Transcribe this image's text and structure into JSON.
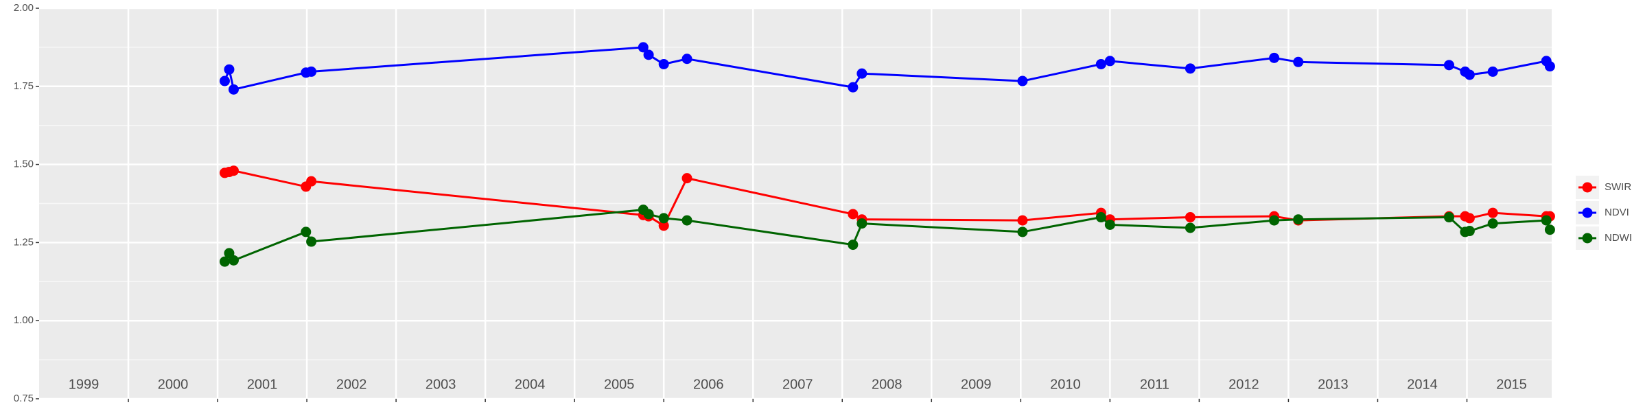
{
  "chart_data": {
    "type": "line",
    "x": [
      2001.08,
      2001.13,
      2001.18,
      2001.99,
      2002.05,
      2005.77,
      2005.83,
      2006.0,
      2006.26,
      2008.12,
      2008.22,
      2010.02,
      2010.9,
      2011.0,
      2011.9,
      2012.84,
      2013.11,
      2014.8,
      2014.98,
      2015.03,
      2015.29,
      2015.89,
      2015.93
    ],
    "series": [
      {
        "name": "SWIR",
        "color": "#ff0000",
        "values": [
          1.473,
          1.476,
          1.48,
          1.429,
          1.446,
          1.338,
          1.334,
          1.304,
          1.456,
          1.341,
          1.324,
          1.321,
          1.345,
          1.324,
          1.331,
          1.334,
          1.321,
          1.334,
          1.334,
          1.328,
          1.345,
          1.334,
          1.334
        ]
      },
      {
        "name": "NDVI",
        "color": "#0000ff",
        "values": [
          1.767,
          1.804,
          1.74,
          1.794,
          1.797,
          1.875,
          1.851,
          1.821,
          1.838,
          1.747,
          1.791,
          1.767,
          1.821,
          1.831,
          1.807,
          1.841,
          1.828,
          1.818,
          1.797,
          1.787,
          1.797,
          1.831,
          1.814
        ]
      },
      {
        "name": "NDWI",
        "color": "#006400",
        "values": [
          1.189,
          1.216,
          1.193,
          1.284,
          1.253,
          1.355,
          1.341,
          1.328,
          1.321,
          1.243,
          1.311,
          1.284,
          1.331,
          1.307,
          1.297,
          1.321,
          1.324,
          1.331,
          1.284,
          1.287,
          1.311,
          1.321,
          1.291
        ]
      }
    ],
    "xlim": [
      1999,
      2015.95
    ],
    "xticks": [
      2000,
      2001,
      2002,
      2003,
      2004,
      2005,
      2006,
      2007,
      2008,
      2009,
      2010,
      2011,
      2012,
      2013,
      2014,
      2015
    ],
    "year_labels": [
      {
        "x": 1999.5,
        "label": "1999"
      },
      {
        "x": 2000.5,
        "label": "2000"
      },
      {
        "x": 2001.5,
        "label": "2001"
      },
      {
        "x": 2002.5,
        "label": "2002"
      },
      {
        "x": 2003.5,
        "label": "2003"
      },
      {
        "x": 2004.5,
        "label": "2004"
      },
      {
        "x": 2005.5,
        "label": "2005"
      },
      {
        "x": 2006.5,
        "label": "2006"
      },
      {
        "x": 2007.5,
        "label": "2007"
      },
      {
        "x": 2008.5,
        "label": "2008"
      },
      {
        "x": 2009.5,
        "label": "2009"
      },
      {
        "x": 2010.5,
        "label": "2010"
      },
      {
        "x": 2011.5,
        "label": "2011"
      },
      {
        "x": 2012.5,
        "label": "2012"
      },
      {
        "x": 2013.5,
        "label": "2013"
      },
      {
        "x": 2014.5,
        "label": "2014"
      },
      {
        "x": 2015.5,
        "label": "2015"
      }
    ],
    "ylim": [
      0.75,
      2.0
    ],
    "yticks": [
      {
        "value": 0.75,
        "label": "0.75"
      },
      {
        "value": 1.0,
        "label": "1.00"
      },
      {
        "value": 1.25,
        "label": "1.25"
      },
      {
        "value": 1.5,
        "label": "1.50"
      },
      {
        "value": 1.75,
        "label": "1.75"
      },
      {
        "value": 2.0,
        "label": "2.00"
      }
    ],
    "yminor": [
      0.875,
      1.125,
      1.375,
      1.625,
      1.875
    ],
    "grid": true,
    "legend": "right"
  }
}
